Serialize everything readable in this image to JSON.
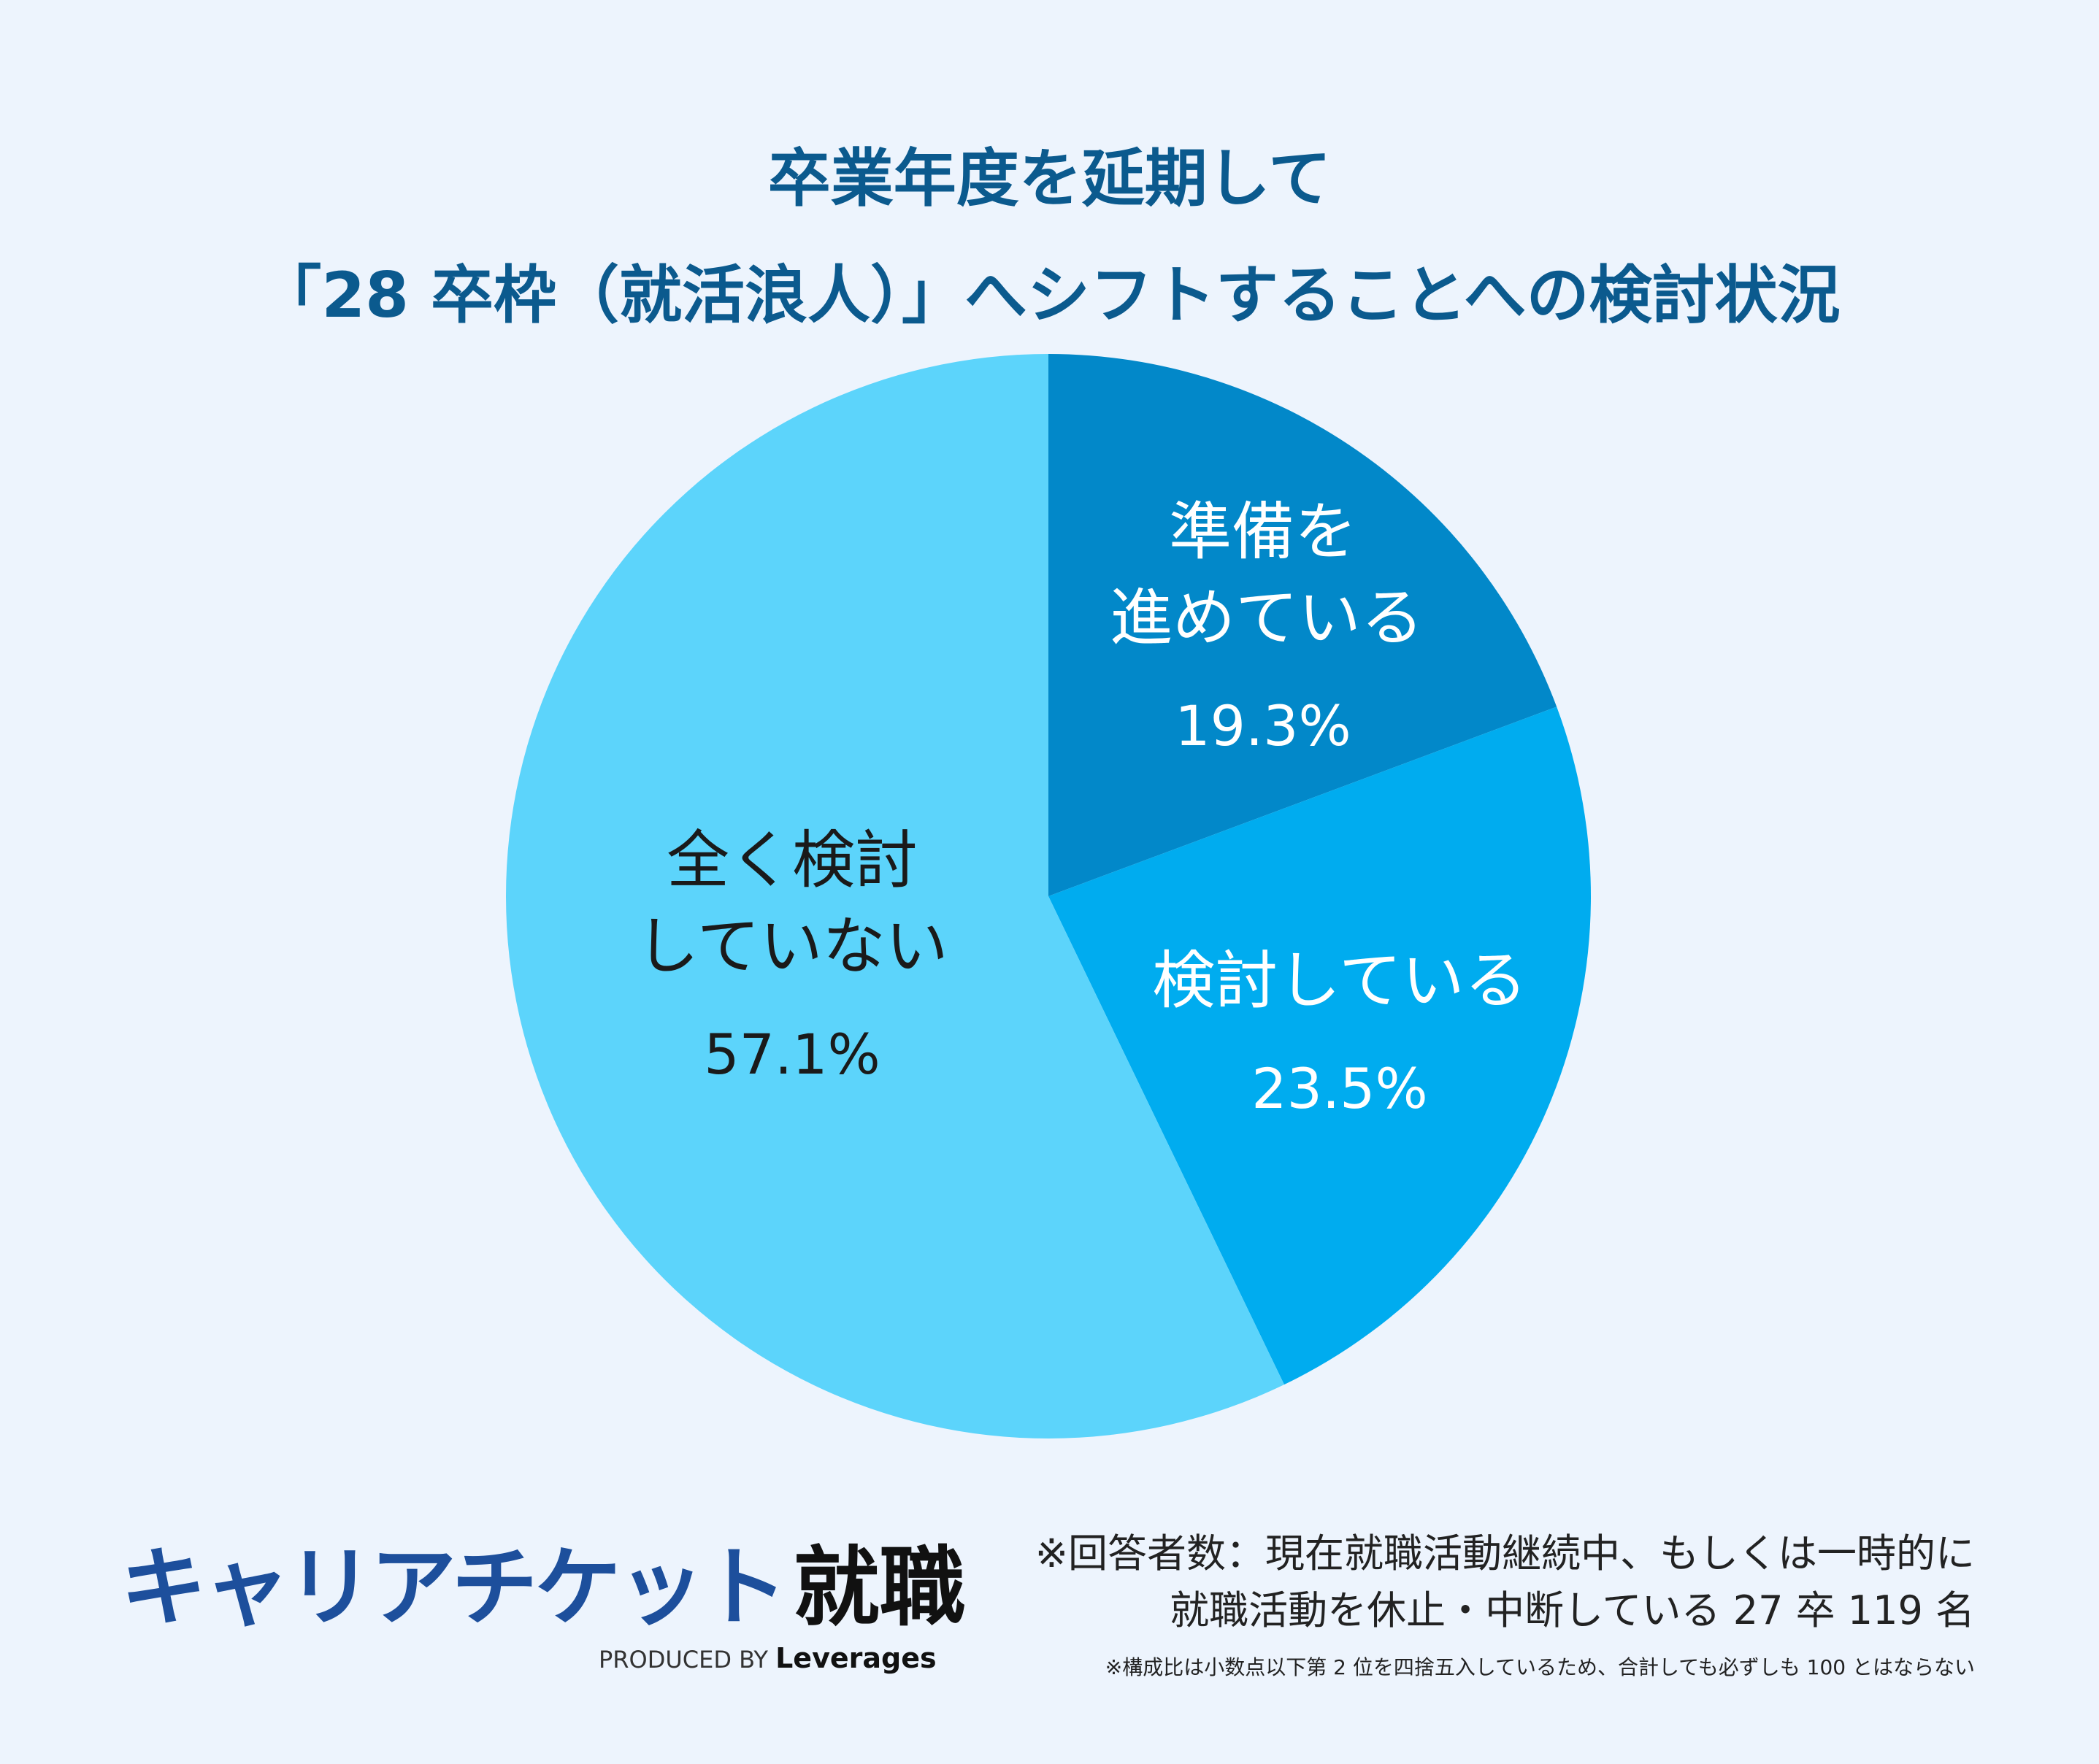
{
  "title": {
    "line1": "卒業年度を延期して",
    "line2": "「28 卒枠（就活浪人）」へシフトすることへの検討状況"
  },
  "chart_data": {
    "type": "pie",
    "start": "12 o'clock, clockwise",
    "slices": [
      {
        "label_line1": "準備を",
        "label_line2": "進めている",
        "value": 19.3,
        "pct_text": "19.3%",
        "color": "#0288c9",
        "text_color": "#ffffff"
      },
      {
        "label_line1": "検討している",
        "label_line2": "",
        "value": 23.5,
        "pct_text": "23.5%",
        "color": "#00acef",
        "text_color": "#ffffff"
      },
      {
        "label_line1": "全く検討",
        "label_line2": "していない",
        "value": 57.1,
        "pct_text": "57.1%",
        "color": "#5cd4fb",
        "text_color": "#1a1a1a"
      }
    ]
  },
  "logo": {
    "brand": "キャリアチケット",
    "kanji": "就職",
    "produced_by": "PRODUCED BY",
    "company": "Leverages"
  },
  "note": {
    "line1": "※回答者数：現在就職活動継続中、もしくは一時的に",
    "line2": "就職活動を休止・中断している 27 卒 119 名",
    "line3": "※構成比は小数点以下第 2 位を四捨五入しているため、合計しても必ずしも 100 とはならない"
  }
}
